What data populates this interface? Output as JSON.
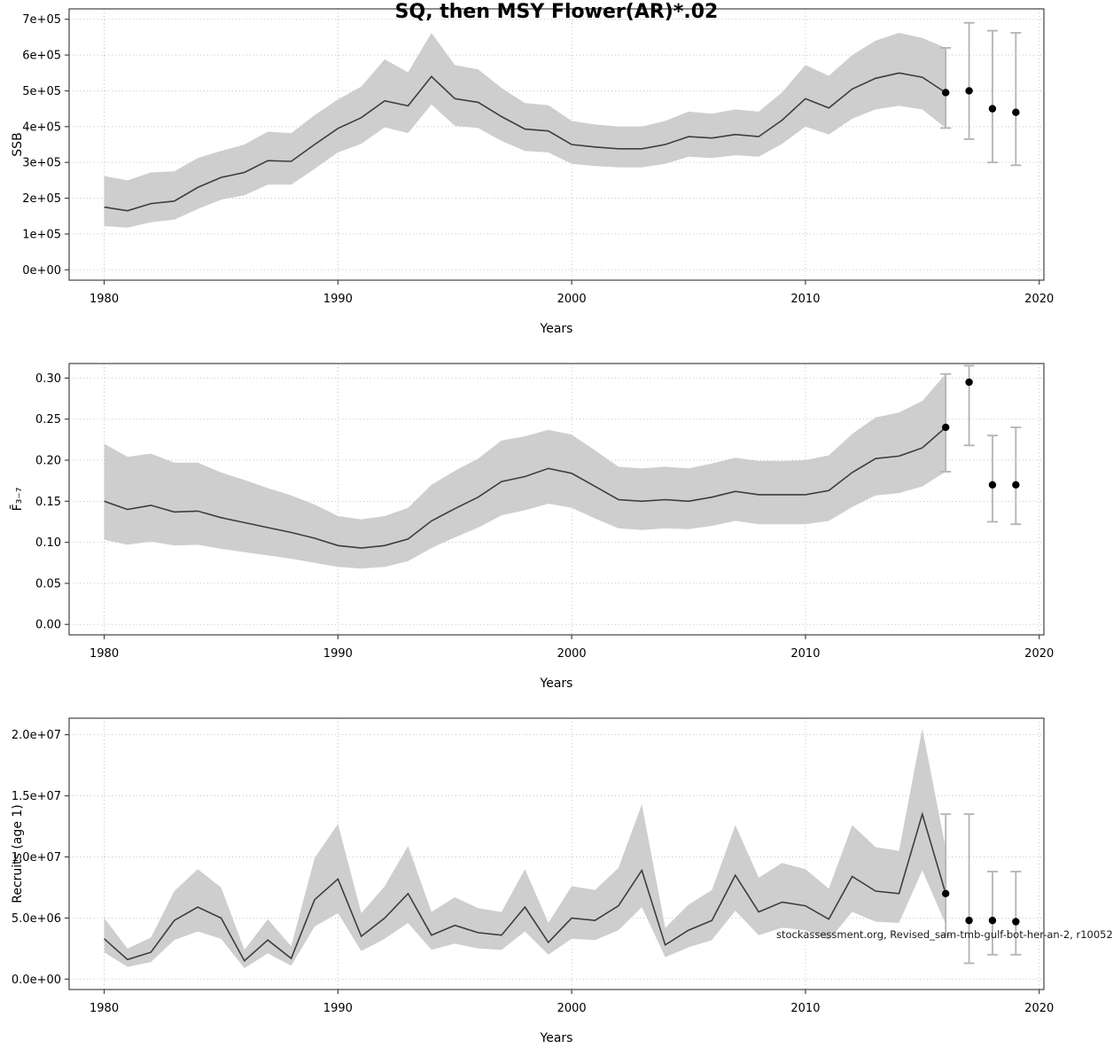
{
  "title": "SQ, then MSY Flower(AR)*.02",
  "watermark": "stockassessment.org, Revised_sam-tmb-gulf-bot-her-an-2, r10052",
  "colors": {
    "line": "#3d3d3d",
    "band": "#c9c9c9",
    "errorbar": "#b3b3b3",
    "point": "#000000",
    "grid": "#c3c3c3",
    "axis": "#444444"
  },
  "chart_data": [
    {
      "type": "line",
      "name": "ssb",
      "ylabel": "SSB",
      "xlabel": "Years",
      "xdomain": [
        1978.5,
        2020.2
      ],
      "ydomain": [
        -29000,
        729000
      ],
      "xtick_values": [
        1980,
        1990,
        2000,
        2010,
        2020
      ],
      "xtick_labels": [
        "1980",
        "1990",
        "2000",
        "2010",
        "2020"
      ],
      "ytick_values": [
        0,
        100000,
        200000,
        300000,
        400000,
        500000,
        600000,
        700000
      ],
      "ytick_labels": [
        "0e+00",
        "1e+05",
        "2e+05",
        "3e+05",
        "4e+05",
        "5e+05",
        "6e+05",
        "7e+05"
      ],
      "x": [
        1980,
        1981,
        1982,
        1983,
        1984,
        1985,
        1986,
        1987,
        1988,
        1989,
        1990,
        1991,
        1992,
        1993,
        1994,
        1995,
        1996,
        1997,
        1998,
        1999,
        2000,
        2001,
        2002,
        2003,
        2004,
        2005,
        2006,
        2007,
        2008,
        2009,
        2010,
        2011,
        2012,
        2013,
        2014,
        2015,
        2016
      ],
      "values": [
        175000,
        165000,
        185000,
        192000,
        230000,
        258000,
        272000,
        305000,
        303000,
        350000,
        395000,
        425000,
        472000,
        458000,
        540000,
        478000,
        468000,
        428000,
        393000,
        388000,
        350000,
        343000,
        338000,
        338000,
        350000,
        372000,
        368000,
        378000,
        372000,
        418000,
        478000,
        452000,
        505000,
        535000,
        550000,
        538000,
        495000
      ],
      "lower": [
        122000,
        118000,
        133000,
        140000,
        170000,
        196000,
        208000,
        238000,
        238000,
        282000,
        328000,
        352000,
        398000,
        382000,
        462000,
        402000,
        396000,
        360000,
        332000,
        328000,
        296000,
        290000,
        286000,
        286000,
        296000,
        316000,
        312000,
        320000,
        316000,
        352000,
        400000,
        378000,
        422000,
        448000,
        458000,
        448000,
        396000
      ],
      "upper": [
        262000,
        250000,
        272000,
        275000,
        312000,
        332000,
        350000,
        386000,
        382000,
        432000,
        476000,
        512000,
        588000,
        552000,
        662000,
        572000,
        560000,
        508000,
        466000,
        460000,
        416000,
        406000,
        400000,
        400000,
        416000,
        442000,
        436000,
        448000,
        442000,
        496000,
        572000,
        542000,
        600000,
        640000,
        662000,
        648000,
        620000
      ],
      "forecast": {
        "x": [
          2016,
          2017,
          2018,
          2019
        ],
        "values": [
          495000,
          500000,
          450000,
          440000
        ],
        "lower": [
          396000,
          365000,
          300000,
          292000
        ],
        "upper": [
          620000,
          690000,
          668000,
          662000
        ]
      }
    },
    {
      "type": "line",
      "name": "fbar",
      "ylabel": "F̄₃₋₇",
      "xlabel": "Years",
      "xdomain": [
        1978.5,
        2020.2
      ],
      "ydomain": [
        -0.0127,
        0.3177
      ],
      "xtick_values": [
        1980,
        1990,
        2000,
        2010,
        2020
      ],
      "xtick_labels": [
        "1980",
        "1990",
        "2000",
        "2010",
        "2020"
      ],
      "ytick_values": [
        0.0,
        0.05,
        0.1,
        0.15,
        0.2,
        0.25,
        0.3
      ],
      "ytick_labels": [
        "0.00",
        "0.05",
        "0.10",
        "0.15",
        "0.20",
        "0.25",
        "0.30"
      ],
      "x": [
        1980,
        1981,
        1982,
        1983,
        1984,
        1985,
        1986,
        1987,
        1988,
        1989,
        1990,
        1991,
        1992,
        1993,
        1994,
        1995,
        1996,
        1997,
        1998,
        1999,
        2000,
        2001,
        2002,
        2003,
        2004,
        2005,
        2006,
        2007,
        2008,
        2009,
        2010,
        2011,
        2012,
        2013,
        2014,
        2015,
        2016
      ],
      "values": [
        0.15,
        0.14,
        0.145,
        0.137,
        0.138,
        0.13,
        0.124,
        0.118,
        0.112,
        0.105,
        0.096,
        0.093,
        0.096,
        0.104,
        0.126,
        0.141,
        0.155,
        0.174,
        0.18,
        0.19,
        0.184,
        0.168,
        0.152,
        0.15,
        0.152,
        0.15,
        0.155,
        0.162,
        0.158,
        0.158,
        0.158,
        0.163,
        0.185,
        0.202,
        0.205,
        0.215,
        0.24
      ],
      "lower": [
        0.103,
        0.097,
        0.101,
        0.096,
        0.097,
        0.092,
        0.088,
        0.084,
        0.08,
        0.075,
        0.07,
        0.068,
        0.07,
        0.077,
        0.093,
        0.106,
        0.118,
        0.133,
        0.139,
        0.147,
        0.142,
        0.129,
        0.117,
        0.115,
        0.117,
        0.116,
        0.12,
        0.126,
        0.122,
        0.122,
        0.122,
        0.126,
        0.143,
        0.157,
        0.16,
        0.168,
        0.186
      ],
      "upper": [
        0.22,
        0.204,
        0.208,
        0.197,
        0.197,
        0.185,
        0.176,
        0.166,
        0.157,
        0.146,
        0.132,
        0.128,
        0.132,
        0.142,
        0.17,
        0.187,
        0.202,
        0.224,
        0.229,
        0.237,
        0.231,
        0.212,
        0.192,
        0.19,
        0.192,
        0.19,
        0.196,
        0.203,
        0.199,
        0.199,
        0.2,
        0.206,
        0.232,
        0.252,
        0.258,
        0.272,
        0.305
      ],
      "forecast": {
        "x": [
          2016,
          2017,
          2018,
          2019
        ],
        "values": [
          0.24,
          0.295,
          0.17,
          0.17
        ],
        "lower": [
          0.186,
          0.218,
          0.125,
          0.122
        ],
        "upper": [
          0.305,
          0.315,
          0.23,
          0.24
        ]
      }
    },
    {
      "type": "line",
      "name": "recruits",
      "ylabel": "Recruits (age 1)",
      "xlabel": "Years",
      "xdomain": [
        1978.5,
        2020.2
      ],
      "ydomain": [
        -850000,
        21350000
      ],
      "xtick_values": [
        1980,
        1990,
        2000,
        2010,
        2020
      ],
      "xtick_labels": [
        "1980",
        "1990",
        "2000",
        "2010",
        "2020"
      ],
      "ytick_values": [
        0,
        5000000,
        10000000,
        15000000,
        20000000
      ],
      "ytick_labels": [
        "0.0e+00",
        "5.0e+06",
        "1.0e+07",
        "1.5e+07",
        "2.0e+07"
      ],
      "x": [
        1980,
        1981,
        1982,
        1983,
        1984,
        1985,
        1986,
        1987,
        1988,
        1989,
        1990,
        1991,
        1992,
        1993,
        1994,
        1995,
        1996,
        1997,
        1998,
        1999,
        2000,
        2001,
        2002,
        2003,
        2004,
        2005,
        2006,
        2007,
        2008,
        2009,
        2010,
        2011,
        2012,
        2013,
        2014,
        2015,
        2016
      ],
      "values": [
        3300000,
        1600000,
        2200000,
        4800000,
        5900000,
        5000000,
        1500000,
        3200000,
        1700000,
        6500000,
        8200000,
        3500000,
        5000000,
        7000000,
        3600000,
        4400000,
        3800000,
        3600000,
        5900000,
        3000000,
        5000000,
        4800000,
        6000000,
        8900000,
        2800000,
        4000000,
        4800000,
        8500000,
        5500000,
        6300000,
        6000000,
        4900000,
        8400000,
        7200000,
        7000000,
        13500000,
        7000000
      ],
      "lower": [
        2200000,
        1000000,
        1400000,
        3200000,
        3900000,
        3300000,
        900000,
        2100000,
        1100000,
        4300000,
        5400000,
        2300000,
        3300000,
        4600000,
        2400000,
        2900000,
        2500000,
        2400000,
        3900000,
        2000000,
        3300000,
        3200000,
        4000000,
        5900000,
        1800000,
        2600000,
        3200000,
        5600000,
        3600000,
        4200000,
        4000000,
        3200000,
        5500000,
        4700000,
        4600000,
        8900000,
        4500000
      ],
      "upper": [
        5000000,
        2500000,
        3400000,
        7200000,
        9000000,
        7500000,
        2400000,
        4900000,
        2700000,
        9900000,
        12700000,
        5400000,
        7600000,
        10900000,
        5500000,
        6700000,
        5800000,
        5500000,
        9000000,
        4600000,
        7600000,
        7300000,
        9100000,
        14300000,
        4200000,
        6100000,
        7300000,
        12600000,
        8300000,
        9500000,
        9000000,
        7400000,
        12600000,
        10800000,
        10500000,
        20500000,
        10700000
      ],
      "forecast": {
        "x": [
          2016,
          2017,
          2018,
          2019
        ],
        "values": [
          7000000,
          4800000,
          4800000,
          4700000
        ],
        "lower": [
          3600000,
          1300000,
          2000000,
          2000000
        ],
        "upper": [
          13500000,
          13500000,
          8800000,
          8800000
        ]
      }
    }
  ]
}
